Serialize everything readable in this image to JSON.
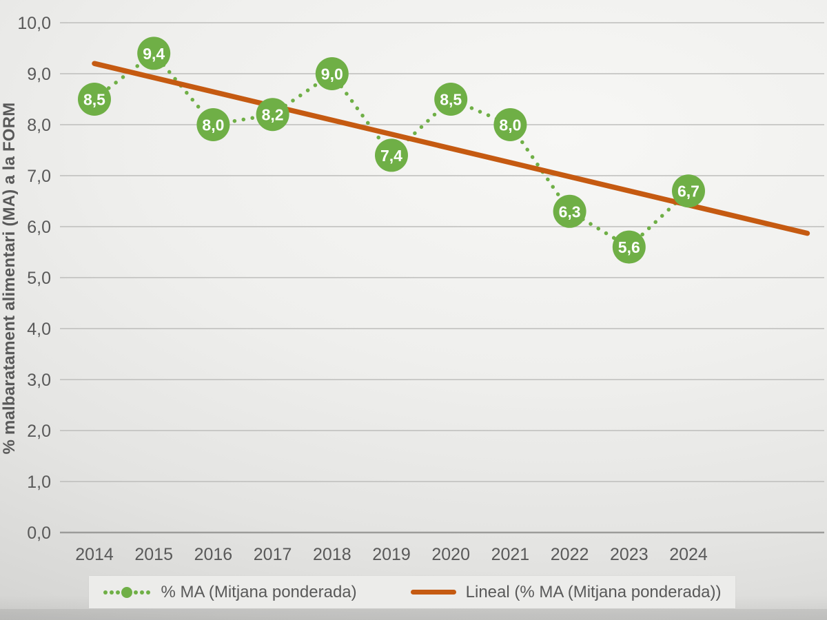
{
  "chart_data": {
    "type": "line",
    "title": "",
    "xlabel": "",
    "ylabel": "% malbaratament alimentari (MA) a la FORM",
    "ylim": [
      0,
      10
    ],
    "grid": true,
    "legend_position": "bottom",
    "categories": [
      "2014",
      "2015",
      "2016",
      "2017",
      "2018",
      "2019",
      "2020",
      "2021",
      "2022",
      "2023",
      "2024"
    ],
    "yticks": [
      {
        "value": 0,
        "label": "0,0"
      },
      {
        "value": 1,
        "label": "1,0"
      },
      {
        "value": 2,
        "label": "2,0"
      },
      {
        "value": 3,
        "label": "3,0"
      },
      {
        "value": 4,
        "label": "4,0"
      },
      {
        "value": 5,
        "label": "5,0"
      },
      {
        "value": 6,
        "label": "6,0"
      },
      {
        "value": 7,
        "label": "7,0"
      },
      {
        "value": 8,
        "label": "8,0"
      },
      {
        "value": 9,
        "label": "9,0"
      },
      {
        "value": 10,
        "label": "10,0"
      }
    ],
    "series": [
      {
        "name": "% MA (Mitjana ponderada)",
        "type": "dotted-line-with-circle-markers",
        "color": "#6faf46",
        "values": [
          8.5,
          9.4,
          8.0,
          8.2,
          9.0,
          7.4,
          8.5,
          8.0,
          6.3,
          5.6,
          6.7
        ],
        "labels": [
          "8,5",
          "9,4",
          "8,0",
          "8,2",
          "9,0",
          "7,4",
          "8,5",
          "8,0",
          "6,3",
          "5,6",
          "6,7"
        ]
      },
      {
        "name": "Lineal (% MA (Mitjana ponderada))",
        "type": "linear-trendline",
        "color": "#c55a11",
        "trend": {
          "x": [
            2014,
            2026
          ],
          "y": [
            9.2,
            5.87
          ]
        }
      }
    ]
  },
  "colors": {
    "series_green": "#6faf46",
    "trend_orange": "#c55a11",
    "grid_line": "#bdbdbb",
    "axis_line": "#9c9c9a",
    "text": "#595959",
    "data_label_text": "#ffffff",
    "legend_background": "#ececea"
  }
}
